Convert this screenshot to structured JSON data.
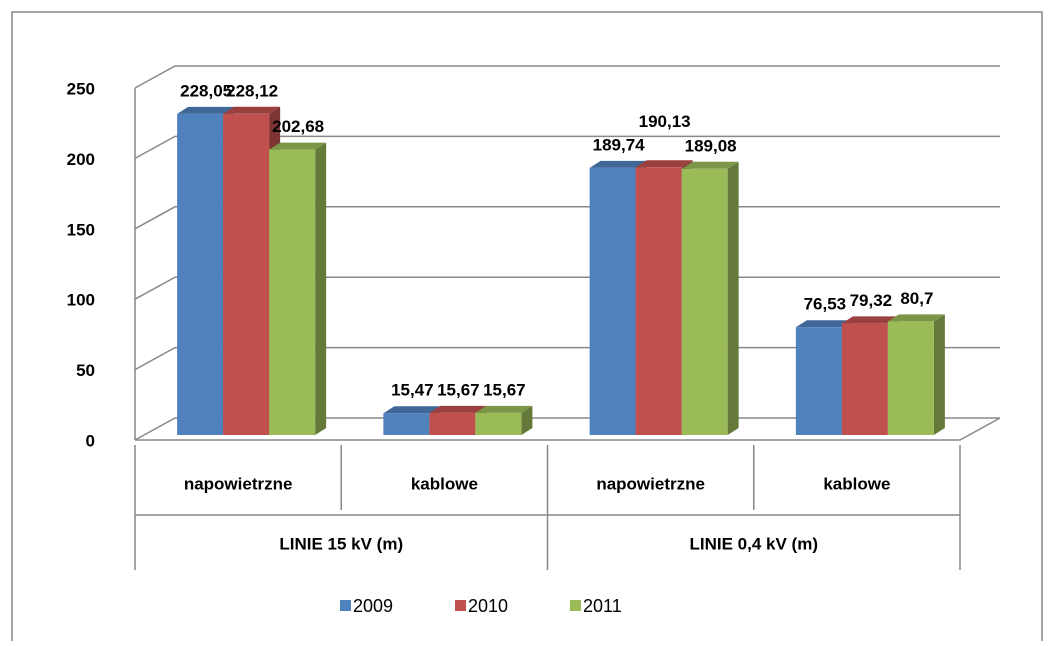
{
  "chart_data": {
    "type": "bar3d",
    "categories": [
      "napowietrzne",
      "kablowe",
      "napowietrzne",
      "kablowe"
    ],
    "category_groups": [
      "LINIE 15 kV (m)",
      "LINIE 0,4 kV (m)"
    ],
    "series": [
      {
        "name": "2009",
        "color": "#4f81bd",
        "values": [
          228.05,
          15.47,
          189.74,
          76.53
        ],
        "value_labels": [
          "228,05",
          "15,47",
          "189,74",
          "76,53"
        ]
      },
      {
        "name": "2010",
        "color": "#c0504d",
        "values": [
          228.12,
          15.67,
          190.13,
          79.32
        ],
        "value_labels": [
          "228,12",
          "15,67",
          "190,13",
          "79,32"
        ]
      },
      {
        "name": "2011",
        "color": "#9bbb59",
        "values": [
          202.68,
          15.67,
          189.08,
          80.7
        ],
        "value_labels": [
          "202,68",
          "15,67",
          "189,08",
          "80,7"
        ]
      }
    ],
    "ylim": [
      0,
      250
    ],
    "yticks": [
      0,
      50,
      100,
      150,
      200,
      250
    ],
    "grid": true,
    "legend": "bottom"
  }
}
